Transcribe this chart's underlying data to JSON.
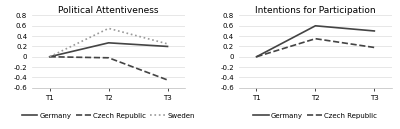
{
  "chart1": {
    "title": "Political Attentiveness",
    "x_labels": [
      "T1",
      "T2",
      "T3"
    ],
    "series": {
      "Germany": {
        "values": [
          0.0,
          0.27,
          0.2
        ],
        "linestyle": "-",
        "color": "#444444",
        "linewidth": 1.2
      },
      "Czech Republic": {
        "values": [
          0.0,
          -0.02,
          -0.45
        ],
        "linestyle": "--",
        "color": "#444444",
        "linewidth": 1.2
      },
      "Sweden": {
        "values": [
          0.0,
          0.55,
          0.25
        ],
        "linestyle": ":",
        "color": "#999999",
        "linewidth": 1.2
      }
    },
    "ylim": [
      -0.6,
      0.8
    ],
    "yticks": [
      -0.6,
      -0.4,
      -0.2,
      0.0,
      0.2,
      0.4,
      0.6,
      0.8
    ]
  },
  "chart2": {
    "title": "Intentions for Participation",
    "x_labels": [
      "T1",
      "T2",
      "T3"
    ],
    "series": {
      "Germany": {
        "values": [
          0.0,
          0.6,
          0.5
        ],
        "linestyle": "-",
        "color": "#444444",
        "linewidth": 1.2
      },
      "Czech Republic": {
        "values": [
          0.0,
          0.35,
          0.18
        ],
        "linestyle": "--",
        "color": "#444444",
        "linewidth": 1.2
      }
    },
    "ylim": [
      -0.6,
      0.8
    ],
    "yticks": [
      -0.6,
      -0.4,
      -0.2,
      0.0,
      0.2,
      0.4,
      0.6,
      0.8
    ]
  },
  "background_color": "#ffffff",
  "title_fontsize": 6.5,
  "tick_fontsize": 5.0,
  "legend_fontsize": 5.0
}
